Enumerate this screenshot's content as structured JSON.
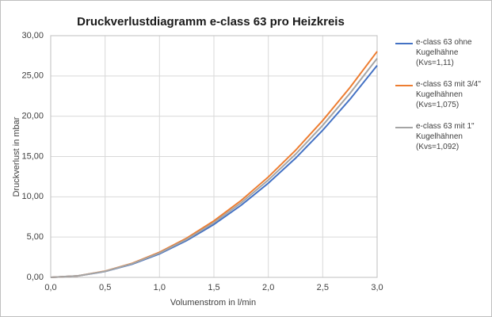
{
  "chart_data": {
    "type": "line",
    "title": "Druckverlustdiagramm e-class 63 pro Heizkreis",
    "x_label": "Volumenstrom in l/min",
    "y_label": "Druckverlust in mbar",
    "x": [
      0,
      0.25,
      0.5,
      0.75,
      1,
      1.25,
      1.5,
      1.75,
      2,
      2.25,
      2.5,
      2.75,
      3
    ],
    "series": [
      {
        "name": "e-class 63 ohne Kugelhähne (Kvs=1,11)",
        "color": "#4472c4",
        "values": [
          0,
          0.18,
          0.73,
          1.64,
          2.92,
          4.57,
          6.57,
          8.95,
          11.69,
          14.79,
          18.26,
          22.1,
          26.3
        ]
      },
      {
        "name": "e-class 63 mit 3/4\" Kugelhähnen (Kvs=1,075)",
        "color": "#ed7d31",
        "values": [
          0,
          0.19,
          0.78,
          1.75,
          3.12,
          4.87,
          7.01,
          9.54,
          12.46,
          15.77,
          19.47,
          23.56,
          28.04
        ]
      },
      {
        "name": "e-class 63 mit 1\" Kugelhähnen (Kvs=1,092)",
        "color": "#a5a5a5",
        "values": [
          0,
          0.19,
          0.75,
          1.7,
          3.02,
          4.72,
          6.79,
          9.25,
          12.08,
          15.28,
          18.87,
          22.83,
          27.17
        ]
      }
    ],
    "xlim": [
      0,
      3
    ],
    "xticks": [
      {
        "value": 0,
        "label": "0,0"
      },
      {
        "value": 0.5,
        "label": "0,5"
      },
      {
        "value": 1,
        "label": "1,0"
      },
      {
        "value": 1.5,
        "label": "1,5"
      },
      {
        "value": 2,
        "label": "2,0"
      },
      {
        "value": 2.5,
        "label": "2,5"
      },
      {
        "value": 3,
        "label": "3,0"
      }
    ],
    "ylim": [
      0,
      30
    ],
    "yticks": [
      {
        "value": 0,
        "label": "0,00"
      },
      {
        "value": 5,
        "label": "5,00"
      },
      {
        "value": 10,
        "label": "10,00"
      },
      {
        "value": 15,
        "label": "15,00"
      },
      {
        "value": 20,
        "label": "20,00"
      },
      {
        "value": 25,
        "label": "25,00"
      },
      {
        "value": 30,
        "label": "30,00"
      }
    ],
    "grid": true,
    "legend": "right"
  }
}
